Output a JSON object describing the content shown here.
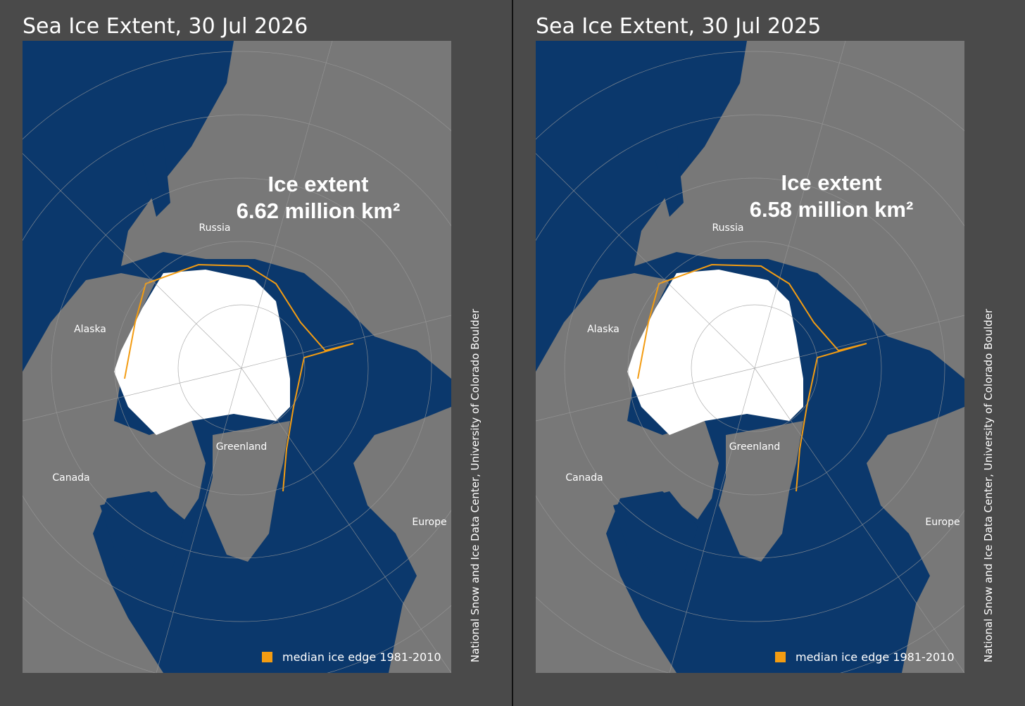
{
  "panels": [
    {
      "title": "Sea Ice Extent, 30 Jul 2026",
      "annotation": {
        "label": "Ice extent",
        "value": "6.62 million km²"
      },
      "place_labels": [
        "Russia",
        "Alaska",
        "Greenland",
        "Canada",
        "Europe"
      ],
      "legend": "median ice edge 1981-2010",
      "credit": "National Snow and Ice Data Center, University of Colorado Boulder"
    },
    {
      "title": "Sea Ice Extent, 30 Jul 2025",
      "annotation": {
        "label": "Ice extent",
        "value": "6.58 million km²"
      },
      "place_labels": [
        "Russia",
        "Alaska",
        "Greenland",
        "Canada",
        "Europe"
      ],
      "legend": "median ice edge 1981-2010",
      "credit": "National Snow and Ice Data Center, University of Colorado Boulder"
    }
  ]
}
